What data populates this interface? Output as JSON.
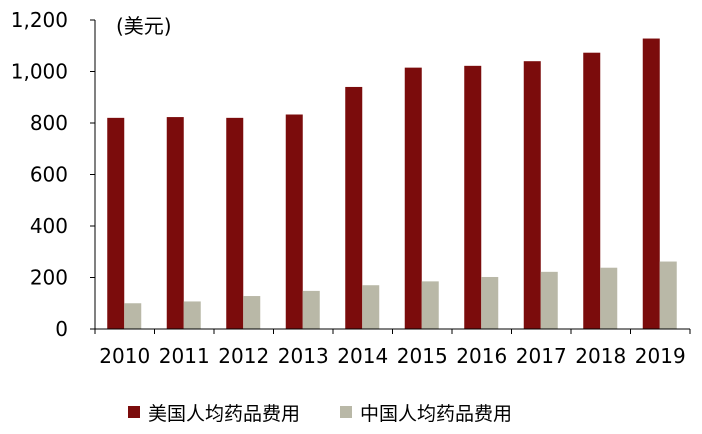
{
  "chart_data": {
    "type": "bar",
    "unit_label": "(美元)",
    "categories": [
      "2010",
      "2011",
      "2012",
      "2013",
      "2014",
      "2015",
      "2016",
      "2017",
      "2018",
      "2019"
    ],
    "series": [
      {
        "name": "美国人均药品费用",
        "color": "#7b0c0c",
        "values": [
          820,
          823,
          820,
          833,
          940,
          1015,
          1022,
          1040,
          1073,
          1128
        ]
      },
      {
        "name": "中国人均药品费用",
        "color": "#b9b8a7",
        "values": [
          100,
          107,
          128,
          148,
          170,
          185,
          202,
          222,
          238,
          262
        ]
      }
    ],
    "y_ticks": [
      "0",
      "200",
      "400",
      "600",
      "800",
      "1,000",
      "1,200"
    ],
    "ylim": [
      0,
      1200
    ],
    "grid": false,
    "legend_position": "bottom"
  }
}
